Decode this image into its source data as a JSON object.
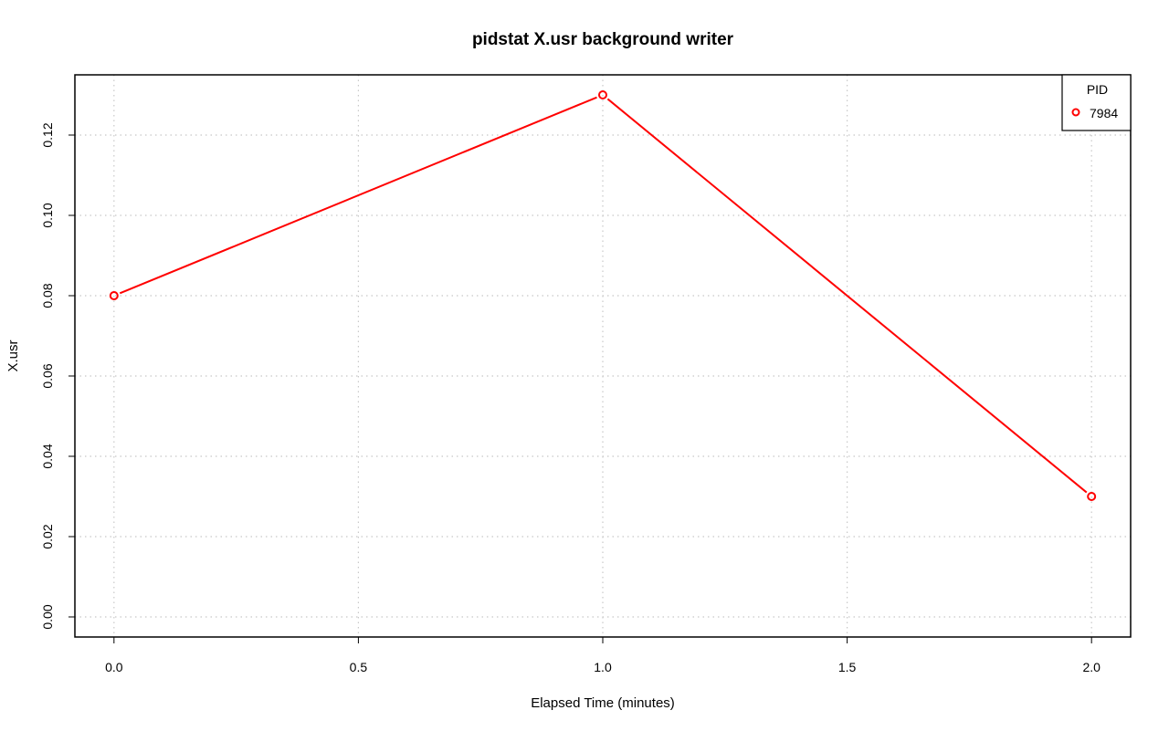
{
  "chart_data": {
    "type": "line",
    "title": "pidstat X.usr background writer",
    "xlabel": "Elapsed Time (minutes)",
    "ylabel": "X.usr",
    "xlim": [
      -0.08,
      2.08
    ],
    "ylim": [
      -0.005,
      0.135
    ],
    "x_ticks": [
      0.0,
      0.5,
      1.0,
      1.5,
      2.0
    ],
    "x_tick_labels": [
      "0.0",
      "0.5",
      "1.0",
      "1.5",
      "2.0"
    ],
    "y_ticks": [
      0.0,
      0.02,
      0.04,
      0.06,
      0.08,
      0.1,
      0.12
    ],
    "y_tick_labels": [
      "0.00",
      "0.02",
      "0.04",
      "0.06",
      "0.08",
      "0.10",
      "0.12"
    ],
    "grid": true,
    "legend": {
      "title": "PID",
      "position": "top-right"
    },
    "series": [
      {
        "name": "7984",
        "color": "#ff0000",
        "x": [
          0.0,
          1.0,
          2.0
        ],
        "y": [
          0.08,
          0.13,
          0.03
        ]
      }
    ]
  }
}
